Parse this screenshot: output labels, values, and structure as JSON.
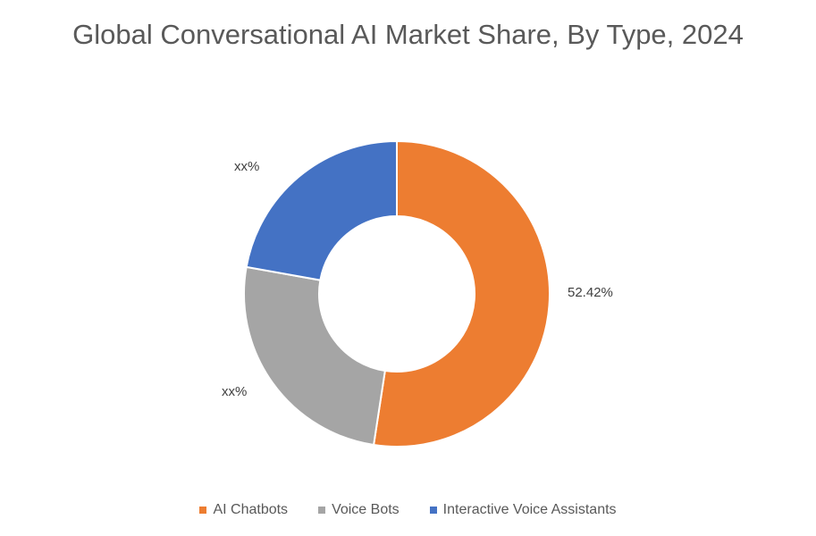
{
  "chart_data": {
    "type": "pie",
    "variant": "donut",
    "title": "Global Conversational AI Market Share, By Type, 2024",
    "categories": [
      "AI Chatbots",
      "Voice Bots",
      "Interactive Voice Assistants"
    ],
    "values": [
      52.42,
      25.4,
      22.18
    ],
    "data_labels": [
      "52.42%",
      "xx%",
      "xx%"
    ],
    "colors": [
      "#ED7D31",
      "#A5A5A5",
      "#4472C4"
    ],
    "legend_position": "bottom"
  }
}
